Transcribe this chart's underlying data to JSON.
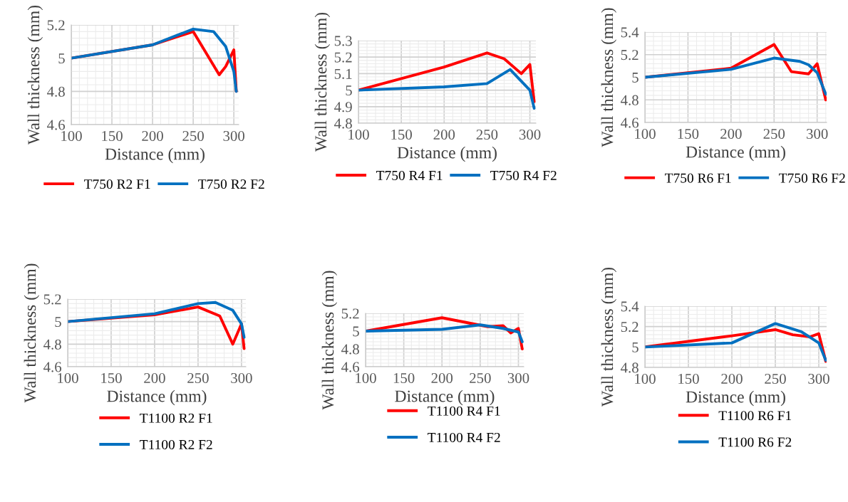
{
  "chart_data": [
    {
      "type": "line",
      "xlabel": "Distance (mm)",
      "ylabel": "Wall thickness (mm)",
      "xlim": [
        100,
        306
      ],
      "xticks": [
        100,
        150,
        200,
        250,
        300
      ],
      "ylim": [
        4.6,
        5.2
      ],
      "yticks": [
        {
          "value": 4.6,
          "label": "4.6"
        },
        {
          "value": 4.8,
          "label": "4.8"
        },
        {
          "value": 5,
          "label": "5"
        },
        {
          "value": 5.2,
          "label": "5.2"
        }
      ],
      "grid": true,
      "legend": "bottom",
      "series": [
        {
          "name": "T750 R2 F1",
          "color": "#ff0000",
          "x": [
            100,
            200,
            250,
            282,
            290,
            300,
            303
          ],
          "values": [
            5,
            5.08,
            5.16,
            4.9,
            4.95,
            5.05,
            4.8
          ]
        },
        {
          "name": "T750 R2 F2",
          "color": "#0070c0",
          "x": [
            100,
            200,
            250,
            275,
            290,
            300,
            303
          ],
          "values": [
            5,
            5.08,
            5.175,
            5.16,
            5.07,
            4.92,
            4.8
          ]
        }
      ]
    },
    {
      "type": "line",
      "xlabel": "Distance (mm)",
      "ylabel": "Wall thickness (mm)",
      "xlim": [
        100,
        307
      ],
      "xticks": [
        100,
        150,
        200,
        250,
        300
      ],
      "ylim": [
        4.8,
        5.3
      ],
      "yticks": [
        {
          "value": 4.8,
          "label": "4.8"
        },
        {
          "value": 4.9,
          "label": "4.9"
        },
        {
          "value": 5,
          "label": "5"
        },
        {
          "value": 5.1,
          "label": "5.1"
        },
        {
          "value": 5.2,
          "label": "5.2"
        },
        {
          "value": 5.3,
          "label": "5.3"
        }
      ],
      "grid": true,
      "legend": "bottom",
      "series": [
        {
          "name": "T750 R4 F1",
          "color": "#ff0000",
          "x": [
            100,
            200,
            250,
            270,
            290,
            300,
            305
          ],
          "values": [
            5,
            5.14,
            5.225,
            5.19,
            5.1,
            5.155,
            4.93
          ]
        },
        {
          "name": "T750 R4 F2",
          "color": "#0070c0",
          "x": [
            100,
            200,
            250,
            277,
            300,
            305
          ],
          "values": [
            5,
            5.02,
            5.04,
            5.125,
            5.0,
            4.89
          ]
        }
      ]
    },
    {
      "type": "line",
      "xlabel": "Distance (mm)",
      "ylabel": "Wall thickness (mm)",
      "xlim": [
        100,
        311
      ],
      "xticks": [
        100,
        150,
        200,
        250,
        300
      ],
      "ylim": [
        4.6,
        5.4
      ],
      "yticks": [
        {
          "value": 4.6,
          "label": "4.6"
        },
        {
          "value": 4.8,
          "label": "4.8"
        },
        {
          "value": 5,
          "label": "5"
        },
        {
          "value": 5.2,
          "label": "5.2"
        },
        {
          "value": 5.4,
          "label": "5.4"
        }
      ],
      "grid": true,
      "legend": "bottom",
      "series": [
        {
          "name": "T750 R6 F1",
          "color": "#ff0000",
          "x": [
            100,
            200,
            250,
            270,
            290,
            300,
            310
          ],
          "values": [
            5,
            5.08,
            5.29,
            5.05,
            5.03,
            5.12,
            4.8
          ]
        },
        {
          "name": "T750 R6 F2",
          "color": "#0070c0",
          "x": [
            100,
            200,
            250,
            280,
            290,
            300,
            310
          ],
          "values": [
            5,
            5.07,
            5.17,
            5.14,
            5.11,
            5.04,
            4.85
          ]
        }
      ]
    },
    {
      "type": "line",
      "xlabel": "Distance (mm)",
      "ylabel": "Wall thickness (mm)",
      "xlim": [
        100,
        305
      ],
      "xticks": [
        100,
        150,
        200,
        250,
        300
      ],
      "ylim": [
        4.6,
        5.2
      ],
      "yticks": [
        {
          "value": 4.6,
          "label": "4.6"
        },
        {
          "value": 4.8,
          "label": "4.8"
        },
        {
          "value": 5,
          "label": "5"
        },
        {
          "value": 5.2,
          "label": "5.2"
        }
      ],
      "grid": true,
      "legend": "bottom",
      "series": [
        {
          "name": "T1100 R2 F1",
          "color": "#ff0000",
          "x": [
            100,
            200,
            250,
            275,
            290,
            300,
            303
          ],
          "values": [
            5,
            5.06,
            5.13,
            5.05,
            4.8,
            4.98,
            4.76
          ]
        },
        {
          "name": "T1100 R2 F2",
          "color": "#0070c0",
          "x": [
            100,
            200,
            250,
            270,
            290,
            300,
            303
          ],
          "values": [
            5,
            5.07,
            5.16,
            5.17,
            5.1,
            4.98,
            4.86
          ]
        }
      ]
    },
    {
      "type": "line",
      "xlabel": "Distance (mm)",
      "ylabel": "Wall thickness (mm)",
      "xlim": [
        100,
        307
      ],
      "xticks": [
        100,
        150,
        200,
        250,
        300
      ],
      "ylim": [
        4.6,
        5.2
      ],
      "yticks": [
        {
          "value": 4.6,
          "label": "4.6"
        },
        {
          "value": 4.8,
          "label": "4.8"
        },
        {
          "value": 5,
          "label": "5"
        },
        {
          "value": 5.2,
          "label": "5.2"
        }
      ],
      "grid": true,
      "legend": "bottom",
      "series": [
        {
          "name": "T1100 R4 F1",
          "color": "#ff0000",
          "x": [
            100,
            200,
            260,
            280,
            290,
            300,
            305
          ],
          "values": [
            5,
            5.15,
            5.05,
            5.06,
            4.98,
            5.03,
            4.8
          ]
        },
        {
          "name": "T1100 R4 F2",
          "color": "#0070c0",
          "x": [
            100,
            200,
            250,
            280,
            300,
            305
          ],
          "values": [
            5,
            5.02,
            5.07,
            5.03,
            4.99,
            4.88
          ]
        }
      ]
    },
    {
      "type": "line",
      "xlabel": "Distance (mm)",
      "ylabel": "Wall thickness (mm)",
      "xlim": [
        100,
        309
      ],
      "xticks": [
        100,
        150,
        200,
        250,
        300
      ],
      "ylim": [
        4.8,
        5.4
      ],
      "yticks": [
        {
          "value": 4.8,
          "label": "4.8"
        },
        {
          "value": 5,
          "label": "5"
        },
        {
          "value": 5.2,
          "label": "5.2"
        },
        {
          "value": 5.4,
          "label": "5.4"
        }
      ],
      "grid": true,
      "legend": "bottom",
      "series": [
        {
          "name": "T1100 R6 F1",
          "color": "#ff0000",
          "x": [
            100,
            200,
            250,
            270,
            290,
            300,
            308
          ],
          "values": [
            5,
            5.11,
            5.17,
            5.12,
            5.1,
            5.13,
            4.86
          ]
        },
        {
          "name": "T1100 R6 F2",
          "color": "#0070c0",
          "x": [
            100,
            200,
            250,
            280,
            300,
            308
          ],
          "values": [
            5,
            5.04,
            5.23,
            5.15,
            5.04,
            4.87
          ]
        }
      ]
    }
  ]
}
